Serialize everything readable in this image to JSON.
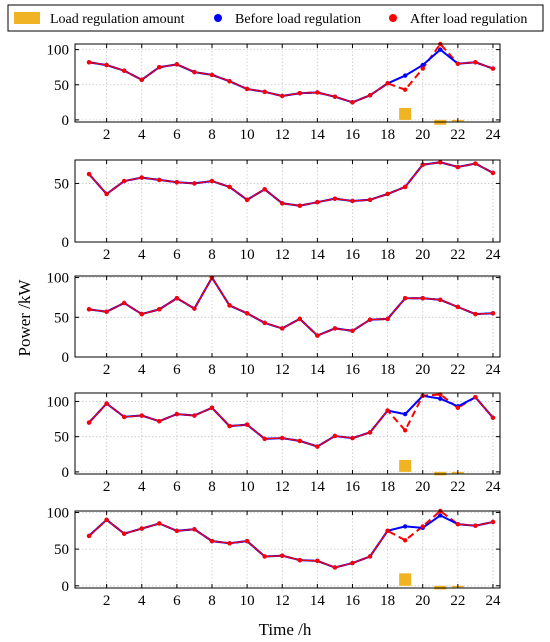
{
  "chart_data": {
    "type": "line",
    "legend": {
      "placement": "top",
      "entries": [
        {
          "label": "Load regulation amount",
          "color": "#F0B323",
          "marker": "bar"
        },
        {
          "label": "Before load regulation",
          "color": "#0000FF",
          "marker": "dot"
        },
        {
          "label": "After load regulation",
          "color": "#FF0000",
          "marker": "dot"
        }
      ]
    },
    "xlabel": "Time /h",
    "ylabel": "Power /kW",
    "x": [
      1,
      2,
      3,
      4,
      5,
      6,
      7,
      8,
      9,
      10,
      11,
      12,
      13,
      14,
      15,
      16,
      17,
      18,
      19,
      20,
      21,
      22,
      23,
      24
    ],
    "xticks": [
      2,
      4,
      6,
      8,
      10,
      12,
      14,
      16,
      18,
      20,
      22,
      24
    ],
    "xlim": [
      0.2,
      24.4
    ],
    "colors": {
      "before": "#0000FF",
      "after": "#FF0000",
      "regulation": "#F0B323"
    },
    "panels": [
      {
        "ylim": [
          -3,
          108
        ],
        "yticks": [
          0,
          50,
          100
        ],
        "before": [
          82,
          78,
          70,
          57,
          75,
          79,
          68,
          64,
          55,
          44,
          40,
          34,
          38,
          39,
          33,
          25,
          35,
          52,
          63,
          78,
          100,
          80,
          82,
          73
        ],
        "after": [
          82,
          78,
          70,
          57,
          75,
          79,
          68,
          64,
          55,
          44,
          40,
          34,
          38,
          39,
          33,
          25,
          35,
          52,
          43,
          73,
          108,
          80,
          82,
          73
        ],
        "regulation": [
          0,
          0,
          0,
          0,
          0,
          0,
          0,
          0,
          0,
          0,
          0,
          0,
          0,
          0,
          0,
          0,
          0,
          0,
          17,
          0,
          -7,
          -2,
          0,
          0
        ]
      },
      {
        "ylim": [
          0,
          70
        ],
        "yticks": [
          0,
          50
        ],
        "before": [
          58,
          41,
          52,
          55,
          53,
          51,
          50,
          52,
          47,
          36,
          45,
          33,
          31,
          34,
          37,
          35,
          36,
          41,
          47,
          66,
          68,
          64,
          67,
          59
        ],
        "after": [
          58,
          41,
          52,
          55,
          53,
          51,
          50,
          52,
          47,
          36,
          45,
          33,
          31,
          34,
          37,
          35,
          36,
          41,
          47,
          66,
          68,
          64,
          67,
          59
        ],
        "regulation": []
      },
      {
        "ylim": [
          0,
          102
        ],
        "yticks": [
          0,
          50,
          100
        ],
        "before": [
          60,
          57,
          68,
          54,
          60,
          74,
          61,
          100,
          65,
          55,
          43,
          36,
          48,
          27,
          36,
          33,
          47,
          48,
          74,
          74,
          72,
          63,
          54,
          55
        ],
        "after": [
          60,
          57,
          68,
          54,
          60,
          74,
          61,
          100,
          65,
          55,
          43,
          36,
          48,
          27,
          36,
          33,
          47,
          48,
          74,
          74,
          72,
          63,
          54,
          55
        ],
        "regulation": []
      },
      {
        "ylim": [
          -3,
          112
        ],
        "yticks": [
          0,
          50,
          100
        ],
        "before": [
          70,
          97,
          78,
          80,
          72,
          82,
          80,
          91,
          65,
          67,
          47,
          48,
          44,
          36,
          51,
          48,
          56,
          87,
          82,
          108,
          104,
          93,
          106,
          77
        ],
        "after": [
          70,
          97,
          78,
          80,
          72,
          82,
          80,
          91,
          65,
          67,
          47,
          48,
          44,
          36,
          51,
          48,
          56,
          87,
          59,
          108,
          110,
          91,
          106,
          77
        ],
        "regulation": [
          0,
          0,
          0,
          0,
          0,
          0,
          0,
          0,
          0,
          0,
          0,
          0,
          0,
          0,
          0,
          0,
          0,
          0,
          17,
          0,
          -5,
          -2,
          0,
          0
        ]
      },
      {
        "ylim": [
          -3,
          102
        ],
        "yticks": [
          0,
          50,
          100
        ],
        "before": [
          68,
          90,
          71,
          78,
          85,
          75,
          77,
          61,
          58,
          61,
          40,
          41,
          35,
          34,
          25,
          31,
          40,
          75,
          81,
          79,
          96,
          84,
          82,
          87
        ],
        "after": [
          68,
          90,
          71,
          78,
          85,
          75,
          77,
          61,
          58,
          61,
          40,
          41,
          35,
          34,
          25,
          31,
          40,
          75,
          62,
          81,
          102,
          84,
          82,
          87
        ],
        "regulation": [
          0,
          0,
          0,
          0,
          0,
          0,
          0,
          0,
          0,
          0,
          0,
          0,
          0,
          0,
          0,
          0,
          0,
          0,
          17,
          0,
          -5,
          -2,
          0,
          0
        ]
      }
    ]
  }
}
